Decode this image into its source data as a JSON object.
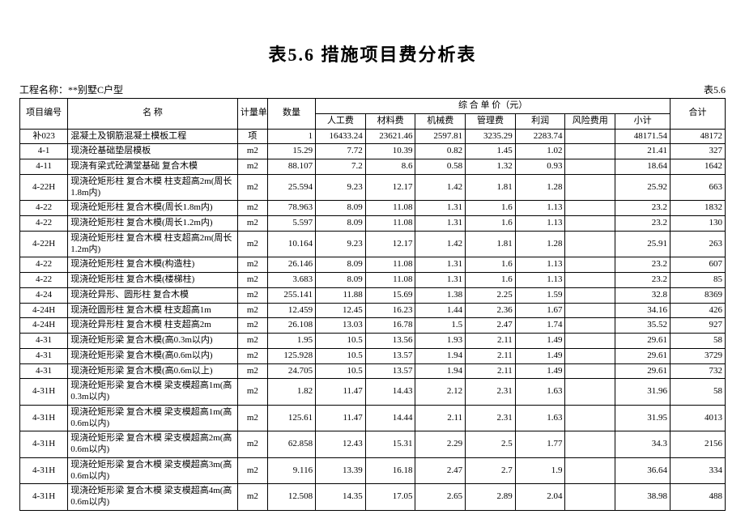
{
  "title": "表5.6  措施项目费分析表",
  "project_label": "工程名称：**别墅C户型",
  "sheet_label": "表5.6",
  "headers": {
    "id": "项目编号",
    "name": "名    称",
    "unit": "计量单位",
    "qty": "数量",
    "price_group": "综 合 单 价（元）",
    "labor": "人工费",
    "material": "材料费",
    "machine": "机械费",
    "manage": "管理费",
    "profit": "利润",
    "risk": "风险费用",
    "subtotal": "小计",
    "total": "合计"
  },
  "rows": [
    {
      "id": "补023",
      "name": "混凝土及钢筋混凝土模板工程",
      "unit": "项",
      "qty": "1",
      "labor": "16433.24",
      "material": "23621.46",
      "machine": "2597.81",
      "manage": "3235.29",
      "profit": "2283.74",
      "risk": "",
      "subtotal": "48171.54",
      "total": "48172"
    },
    {
      "id": "4-1",
      "name": "现浇砼基础垫层模板",
      "unit": "m2",
      "qty": "15.29",
      "labor": "7.72",
      "material": "10.39",
      "machine": "0.82",
      "manage": "1.45",
      "profit": "1.02",
      "risk": "",
      "subtotal": "21.41",
      "total": "327"
    },
    {
      "id": "4-11",
      "name": "现浇有梁式砼满堂基础 复合木模",
      "unit": "m2",
      "qty": "88.107",
      "labor": "7.2",
      "material": "8.6",
      "machine": "0.58",
      "manage": "1.32",
      "profit": "0.93",
      "risk": "",
      "subtotal": "18.64",
      "total": "1642"
    },
    {
      "id": "4-22H",
      "name": "现浇砼矩形柱 复合木模 柱支超高2m(周长1.8m内)",
      "unit": "m2",
      "qty": "25.594",
      "labor": "9.23",
      "material": "12.17",
      "machine": "1.42",
      "manage": "1.81",
      "profit": "1.28",
      "risk": "",
      "subtotal": "25.92",
      "total": "663"
    },
    {
      "id": "4-22",
      "name": "现浇砼矩形柱 复合木模(周长1.8m内)",
      "unit": "m2",
      "qty": "78.963",
      "labor": "8.09",
      "material": "11.08",
      "machine": "1.31",
      "manage": "1.6",
      "profit": "1.13",
      "risk": "",
      "subtotal": "23.2",
      "total": "1832"
    },
    {
      "id": "4-22",
      "name": "现浇砼矩形柱 复合木模(周长1.2m内)",
      "unit": "m2",
      "qty": "5.597",
      "labor": "8.09",
      "material": "11.08",
      "machine": "1.31",
      "manage": "1.6",
      "profit": "1.13",
      "risk": "",
      "subtotal": "23.2",
      "total": "130"
    },
    {
      "id": "4-22H",
      "name": "现浇砼矩形柱 复合木模 柱支超高2m(周长1.2m内)",
      "unit": "m2",
      "qty": "10.164",
      "labor": "9.23",
      "material": "12.17",
      "machine": "1.42",
      "manage": "1.81",
      "profit": "1.28",
      "risk": "",
      "subtotal": "25.91",
      "total": "263"
    },
    {
      "id": "4-22",
      "name": "现浇砼矩形柱 复合木模(构造柱)",
      "unit": "m2",
      "qty": "26.146",
      "labor": "8.09",
      "material": "11.08",
      "machine": "1.31",
      "manage": "1.6",
      "profit": "1.13",
      "risk": "",
      "subtotal": "23.2",
      "total": "607"
    },
    {
      "id": "4-22",
      "name": "现浇砼矩形柱 复合木模(楼梯柱)",
      "unit": "m2",
      "qty": "3.683",
      "labor": "8.09",
      "material": "11.08",
      "machine": "1.31",
      "manage": "1.6",
      "profit": "1.13",
      "risk": "",
      "subtotal": "23.2",
      "total": "85"
    },
    {
      "id": "4-24",
      "name": "现浇砼异形、圆形柱 复合木模",
      "unit": "m2",
      "qty": "255.141",
      "labor": "11.88",
      "material": "15.69",
      "machine": "1.38",
      "manage": "2.25",
      "profit": "1.59",
      "risk": "",
      "subtotal": "32.8",
      "total": "8369"
    },
    {
      "id": "4-24H",
      "name": "现浇砼圆形柱 复合木模 柱支超高1m",
      "unit": "m2",
      "qty": "12.459",
      "labor": "12.45",
      "material": "16.23",
      "machine": "1.44",
      "manage": "2.36",
      "profit": "1.67",
      "risk": "",
      "subtotal": "34.16",
      "total": "426"
    },
    {
      "id": "4-24H",
      "name": "现浇砼异形柱 复合木模 柱支超高2m",
      "unit": "m2",
      "qty": "26.108",
      "labor": "13.03",
      "material": "16.78",
      "machine": "1.5",
      "manage": "2.47",
      "profit": "1.74",
      "risk": "",
      "subtotal": "35.52",
      "total": "927"
    },
    {
      "id": "4-31",
      "name": "现浇砼矩形梁 复合木模(高0.3m以内)",
      "unit": "m2",
      "qty": "1.95",
      "labor": "10.5",
      "material": "13.56",
      "machine": "1.93",
      "manage": "2.11",
      "profit": "1.49",
      "risk": "",
      "subtotal": "29.61",
      "total": "58"
    },
    {
      "id": "4-31",
      "name": "现浇砼矩形梁 复合木模(高0.6m以内)",
      "unit": "m2",
      "qty": "125.928",
      "labor": "10.5",
      "material": "13.57",
      "machine": "1.94",
      "manage": "2.11",
      "profit": "1.49",
      "risk": "",
      "subtotal": "29.61",
      "total": "3729"
    },
    {
      "id": "4-31",
      "name": "现浇砼矩形梁 复合木模(高0.6m以上)",
      "unit": "m2",
      "qty": "24.705",
      "labor": "10.5",
      "material": "13.57",
      "machine": "1.94",
      "manage": "2.11",
      "profit": "1.49",
      "risk": "",
      "subtotal": "29.61",
      "total": "732"
    },
    {
      "id": "4-31H",
      "name": "现浇砼矩形梁 复合木模 梁支模超高1m(高0.3m以内)",
      "unit": "m2",
      "qty": "1.82",
      "labor": "11.47",
      "material": "14.43",
      "machine": "2.12",
      "manage": "2.31",
      "profit": "1.63",
      "risk": "",
      "subtotal": "31.96",
      "total": "58"
    },
    {
      "id": "4-31H",
      "name": "现浇砼矩形梁 复合木模 梁支模超高1m(高0.6m以内)",
      "unit": "m2",
      "qty": "125.61",
      "labor": "11.47",
      "material": "14.44",
      "machine": "2.11",
      "manage": "2.31",
      "profit": "1.63",
      "risk": "",
      "subtotal": "31.95",
      "total": "4013"
    },
    {
      "id": "4-31H",
      "name": "现浇砼矩形梁 复合木模 梁支模超高2m(高0.6m以内)",
      "unit": "m2",
      "qty": "62.858",
      "labor": "12.43",
      "material": "15.31",
      "machine": "2.29",
      "manage": "2.5",
      "profit": "1.77",
      "risk": "",
      "subtotal": "34.3",
      "total": "2156"
    },
    {
      "id": "4-31H",
      "name": "现浇砼矩形梁 复合木模 梁支模超高3m(高0.6m以内)",
      "unit": "m2",
      "qty": "9.116",
      "labor": "13.39",
      "material": "16.18",
      "machine": "2.47",
      "manage": "2.7",
      "profit": "1.9",
      "risk": "",
      "subtotal": "36.64",
      "total": "334"
    },
    {
      "id": "4-31H",
      "name": "现浇砼矩形梁 复合木模 梁支模超高4m(高0.6m以内)",
      "unit": "m2",
      "qty": "12.508",
      "labor": "14.35",
      "material": "17.05",
      "machine": "2.65",
      "manage": "2.89",
      "profit": "2.04",
      "risk": "",
      "subtotal": "38.98",
      "total": "488"
    }
  ]
}
